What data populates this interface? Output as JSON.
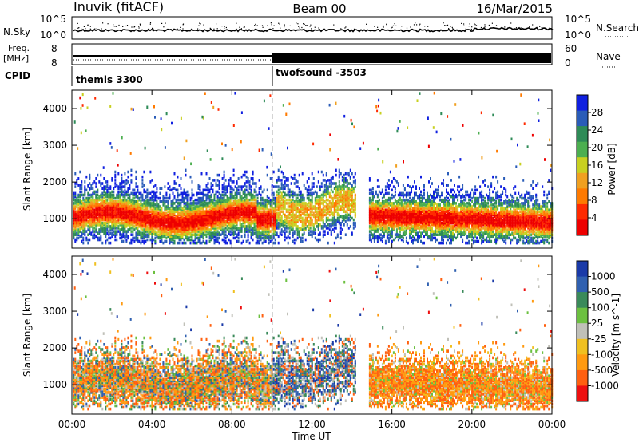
{
  "header": {
    "station": "Inuvik (fitACF)",
    "beam": "Beam 00",
    "date": "16/Mar/2015"
  },
  "top_panels": {
    "nsky": {
      "label": "N.Sky",
      "ytick_top": "10^5",
      "ytick_bottom": "10^0",
      "right_label": "N.Search",
      "right_tick_top": "10^5",
      "right_tick_bottom": "10^0"
    },
    "freq": {
      "label_line1": "Freq.",
      "label_line2": "[MHz]",
      "ytick_top": "8",
      "ytick_bottom": "8",
      "right_label": "Nave",
      "right_tick_top": "60",
      "right_tick_bottom": "0"
    },
    "cpid": {
      "label": "CPID",
      "modes": [
        {
          "name": "themis 3300",
          "start_hour": 0
        },
        {
          "name": "twofsound -3503",
          "start_hour": 10
        }
      ]
    }
  },
  "chart_data": [
    {
      "type": "heatmap",
      "panel": "power",
      "ylabel": "Slant Range [km]",
      "ylim": [
        200,
        4500
      ],
      "yticks": [
        "1000",
        "2000",
        "3000",
        "4000"
      ],
      "xlim": [
        0,
        24
      ],
      "xticks": [
        "00:00",
        "04:00",
        "08:00",
        "12:00",
        "16:00",
        "20:00",
        "00:00"
      ],
      "colorbar": {
        "label": "Power [dB]",
        "ticks": [
          "4",
          "8",
          "12",
          "16",
          "20",
          "24",
          "28"
        ],
        "colors": [
          "#1020e0",
          "#2a5cb8",
          "#2e8b57",
          "#4caf50",
          "#c8d020",
          "#f0a020",
          "#ff7a00",
          "#ff2a00",
          "#ee0000"
        ]
      }
    },
    {
      "type": "heatmap",
      "panel": "velocity",
      "ylabel": "Slant Range [km]",
      "ylim": [
        200,
        4500
      ],
      "yticks": [
        "1000",
        "2000",
        "3000",
        "4000"
      ],
      "xlim": [
        0,
        24
      ],
      "xticks": [
        "00:00",
        "04:00",
        "08:00",
        "12:00",
        "16:00",
        "20:00",
        "00:00"
      ],
      "xlabel": "Time UT",
      "colorbar": {
        "label": "Velocity [m s^-1]",
        "ticks": [
          "1000",
          "500",
          "100",
          "25",
          "-25",
          "-100",
          "-500",
          "-1000"
        ],
        "colors": [
          "#1a3aa8",
          "#3060b0",
          "#3a8a5a",
          "#6cc040",
          "#c0c0b8",
          "#f0c020",
          "#ff9a10",
          "#ff6010",
          "#ee1010"
        ]
      }
    }
  ]
}
